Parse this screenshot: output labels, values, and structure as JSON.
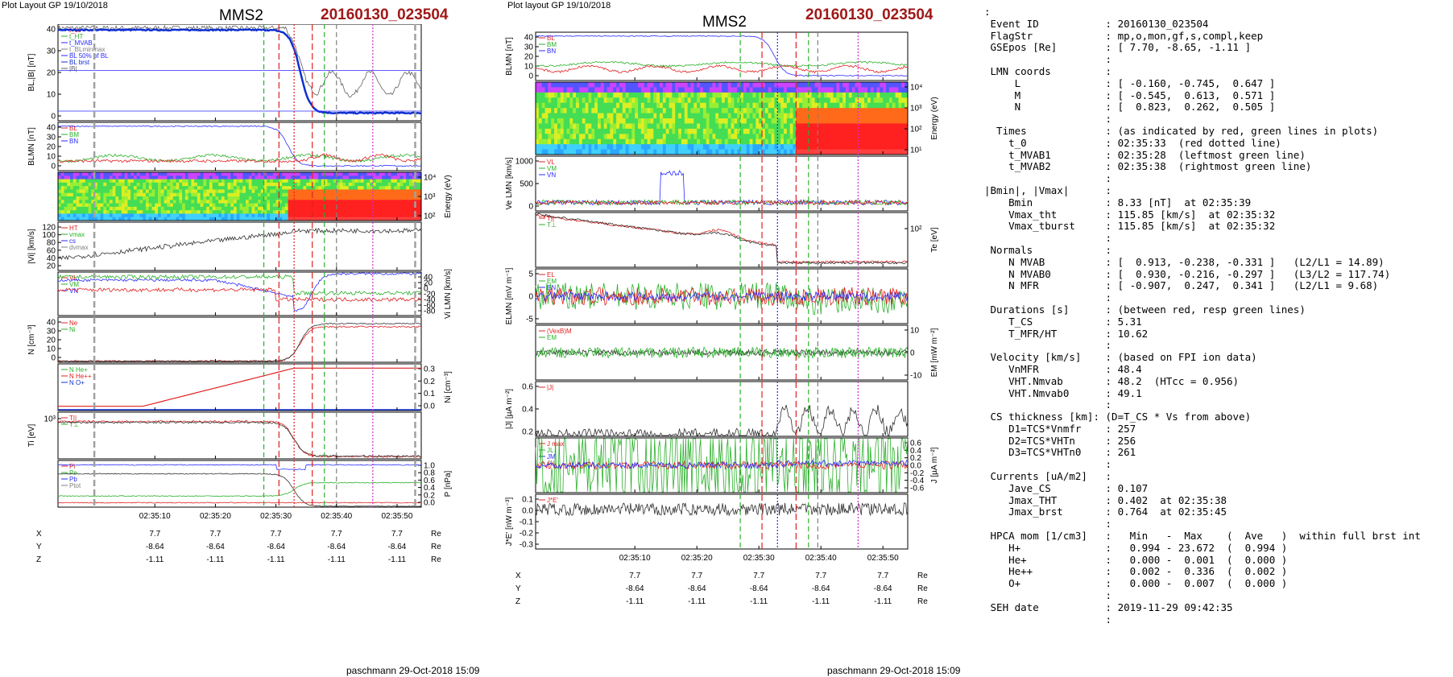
{
  "left": {
    "header": "Plot Layout GP 19/10/2018",
    "spacecraft": "MMS2",
    "event_id": "20160130_023504",
    "footer": "paschmann 29-Oct-2018 15:09",
    "time_ticks": [
      "02:35:10",
      "02:35:20",
      "02:35:30",
      "02:35:40",
      "02:35:50"
    ],
    "pos_rows": [
      {
        "name": "X",
        "vals": [
          "7.7",
          "7.7",
          "7.7",
          "7.7",
          "7.7"
        ],
        "unit": "Re"
      },
      {
        "name": "Y",
        "vals": [
          "-8.64",
          "-8.64",
          "-8.64",
          "-8.64",
          "-8.64"
        ],
        "unit": "Re"
      },
      {
        "name": "Z",
        "vals": [
          "-1.11",
          "-1.11",
          "-1.11",
          "-1.11",
          "-1.11"
        ],
        "unit": "Re"
      }
    ],
    "panels": [
      {
        "ylabel": "BL,|B| [nT]",
        "ticks_left": [
          "40",
          "30",
          "20",
          "10",
          "0"
        ],
        "ticks_right": [],
        "legend": [
          "t_cs",
          "t_HT",
          "t_MVAB",
          "t_BLminmax",
          "BL 50% of BL",
          "BL brst",
          "|B|"
        ]
      },
      {
        "ylabel": "BLMN [nT]",
        "ticks_left": [
          "40",
          "30",
          "20",
          "10",
          "0"
        ],
        "ticks_right": [],
        "legend": [
          "BL",
          "BM",
          "BN"
        ]
      },
      {
        "ylabel": "Energy (eV)",
        "ticks_left": [],
        "ticks_right": [
          "10⁴",
          "10³",
          "10²"
        ],
        "legend": []
      },
      {
        "ylabel": "|Vi| [km/s]",
        "ticks_left": [
          "120",
          "100",
          "80",
          "60",
          "40",
          "20"
        ],
        "ticks_right": [],
        "legend": [
          "HT",
          "vmax",
          "cs",
          "dvmax"
        ]
      },
      {
        "ylabel": "Vi LMN [km/s]",
        "ticks_left": [],
        "ticks_right": [
          "40",
          "20",
          "0",
          "-20",
          "-40",
          "-60",
          "-80"
        ],
        "legend": [
          "VL",
          "VM",
          "VN"
        ]
      },
      {
        "ylabel": "N [cm⁻³]",
        "ticks_left": [
          "40",
          "30",
          "20",
          "10",
          "0"
        ],
        "ticks_right": [],
        "legend": [
          "Ne",
          "Ni"
        ]
      },
      {
        "ylabel": "Ni [cm⁻³]",
        "ticks_left": [],
        "ticks_right": [
          "0.3",
          "0.2",
          "0.1",
          "0.0"
        ],
        "legend": [
          "N He+",
          "N He++",
          "N O+"
        ]
      },
      {
        "ylabel": "Ti [eV]",
        "ticks_left": [
          "10³"
        ],
        "ticks_right": [],
        "legend": [
          "T||",
          "T⊥"
        ]
      },
      {
        "ylabel": "P [nPa]",
        "ticks_left": [],
        "ticks_right": [
          "1.0",
          "0.8",
          "0.6",
          "0.4",
          "0.2",
          "0.0"
        ],
        "legend": [
          "Pi",
          "Pe",
          "Pb",
          "Ptot"
        ]
      }
    ]
  },
  "middle": {
    "header": "Plot layout GP 19/10/2018",
    "spacecraft": "MMS2",
    "event_id": "20160130_023504",
    "footer": "paschmann 29-Oct-2018 15:09",
    "time_ticks": [
      "02:35:10",
      "02:35:20",
      "02:35:30",
      "02:35:40",
      "02:35:50"
    ],
    "pos_rows": [
      {
        "name": "X",
        "vals": [
          "7.7",
          "7.7",
          "7.7",
          "7.7",
          "7.7"
        ],
        "unit": "Re"
      },
      {
        "name": "Y",
        "vals": [
          "-8.64",
          "-8.64",
          "-8.64",
          "-8.64",
          "-8.64"
        ],
        "unit": "Re"
      },
      {
        "name": "Z",
        "vals": [
          "-1.11",
          "-1.11",
          "-1.11",
          "-1.11",
          "-1.11"
        ],
        "unit": "Re"
      }
    ],
    "panels": [
      {
        "ylabel": "BLMN [nT]",
        "ticks_left": [
          "40",
          "30",
          "20",
          "10",
          "0"
        ],
        "ticks_right": [],
        "legend": [
          "BL",
          "BM",
          "BN"
        ]
      },
      {
        "ylabel": "Energy (eV)",
        "ticks_left": [],
        "ticks_right": [
          "10⁴",
          "10³",
          "10²",
          "10¹"
        ],
        "legend": []
      },
      {
        "ylabel": "Ve LMN [km/s]",
        "ticks_left": [
          "1000",
          "500",
          "0"
        ],
        "ticks_right": [],
        "legend": [
          "VL",
          "VM",
          "VN"
        ]
      },
      {
        "ylabel": "Te [eV]",
        "ticks_left": [],
        "ticks_right": [
          "10²"
        ],
        "legend": [
          "T||",
          "T⊥"
        ]
      },
      {
        "ylabel": "ELMN [mV m⁻¹]",
        "ticks_left": [
          "5",
          "0",
          "-5"
        ],
        "ticks_right": [],
        "legend": [
          "EL",
          "EM",
          "EN"
        ]
      },
      {
        "ylabel": "EM [mW m⁻²]",
        "ticks_left": [],
        "ticks_right": [
          "10",
          "0",
          "-10"
        ],
        "legend": [
          "(VexB)M",
          "EM"
        ]
      },
      {
        "ylabel": "|J| [µA m⁻²]",
        "ticks_left": [
          "0.6",
          "0.4",
          "0.2"
        ],
        "ticks_right": [],
        "legend": [
          "|J|"
        ]
      },
      {
        "ylabel": "J [µA m⁻²]",
        "ticks_left": [],
        "ticks_right": [
          "0.6",
          "0.4",
          "0.2",
          "0.0",
          "-0.2",
          "-0.4",
          "-0.6"
        ],
        "legend": [
          "J max",
          "JL",
          "JM",
          "JN"
        ]
      },
      {
        "ylabel": "J*E' [nW m⁻³]",
        "ticks_left": [
          "0.1",
          "0.0",
          "-0.1",
          "-0.2",
          "-0.3"
        ],
        "ticks_right": [],
        "legend": [
          "J*E'"
        ]
      }
    ]
  },
  "summary": {
    "lines": [
      ":",
      " Event ID           : 20160130_023504",
      " FlagStr            : mp,o,mon,gf,s,compl,keep",
      " GSEpos [Re]        : [ 7.70, -8.65, -1.11 ]",
      "                    :",
      " LMN coords         :",
      "     L              : [ -0.160, -0.745,  0.647 ]",
      "     M              : [ -0.545,  0.613,  0.571 ]",
      "     N              : [  0.823,  0.262,  0.505 ]",
      "                    :",
      "  Times             : (as indicated by red, green lines in plots)",
      "    t_0             : 02:35:33  (red dotted line)",
      "    t_MVAB1         : 02:35:28  (leftmost green line)",
      "    t_MVAB2         : 02:35:38  (rightmost green line)",
      "                    :",
      "|Bmin|, |Vmax|      :",
      "    Bmin            : 8.33 [nT]  at 02:35:39",
      "    Vmax_tht        : 115.85 [km/s]  at 02:35:32",
      "    Vmax_tburst     : 115.85 [km/s]  at 02:35:32",
      "                    :",
      " Normals            :",
      "    N MVAB          : [  0.913, -0.238, -0.331 ]   (L2/L1 = 14.89)",
      "    N MVAB0         : [  0.930, -0.216, -0.297 ]   (L3/L2 = 117.74)",
      "    N MFR           : [ -0.907,  0.247,  0.341 ]   (L2/L1 = 9.68)",
      "                    :",
      " Durations [s]      : (between red, resp green lines)",
      "    T_CS            : 5.31",
      "    T_MFR/HT        : 10.62",
      "                    :",
      " Velocity [km/s]    : (based on FPI ion data)",
      "    VnMFR           : 48.4",
      "    VHT.Nmvab       : 48.2  (HTcc = 0.956)",
      "    VHT.Nmvab0      : 49.1",
      "                    :",
      " CS thickness [km]: (D=T_CS * Vs from above)",
      "    D1=TCS*Vnmfr    : 257",
      "    D2=TCS*VHTn     : 256",
      "    D3=TCS*VHTn0    : 261",
      "                    :",
      " Currents [uA/m2]   :",
      "    Jave_CS         : 0.107",
      "    Jmax_THT        : 0.402  at 02:35:38",
      "    Jmax_brst       : 0.764  at 02:35:45",
      "                    :",
      " HPCA mom [1/cm3]   :   Min   -  Max    (  Ave   )  within full brst int",
      "    H+              :   0.994 - 23.672  (  0.994 )",
      "    He+             :   0.000 -  0.001  (  0.000 )",
      "    He++            :   0.002 -  0.336  (  0.002 )",
      "    O+              :   0.000 -  0.007  (  0.000 )",
      "                    :",
      " SEH date           : 2019-11-29 09:42:35",
      "                    :"
    ]
  },
  "chart_data": [
    {
      "type": "line",
      "title": "MMS2 20160130_023504",
      "xlabel": "",
      "x_ticks": [
        "02:35:10",
        "02:35:20",
        "02:35:30",
        "02:35:40",
        "02:35:50"
      ],
      "panels": 9,
      "markers_time_s": {
        "t_0": 33,
        "t_MVAB1": 28,
        "t_MVAB2": 38
      },
      "BL_profile": {
        "x": [
          -5,
          0,
          10,
          20,
          28,
          30,
          32,
          34,
          36,
          40,
          45,
          50,
          53
        ],
        "y": [
          41,
          42,
          43,
          42,
          41,
          38,
          27,
          12,
          3,
          0,
          0.5,
          -1,
          -1
        ]
      }
    },
    {
      "type": "line",
      "title": "MMS2 20160130_023504",
      "xlabel": "",
      "x_ticks": [
        "02:35:10",
        "02:35:20",
        "02:35:30",
        "02:35:40",
        "02:35:50"
      ],
      "panels": 9,
      "J_peaks": {
        "x": [
          38,
          45
        ],
        "y": [
          0.402,
          0.764
        ]
      }
    }
  ]
}
